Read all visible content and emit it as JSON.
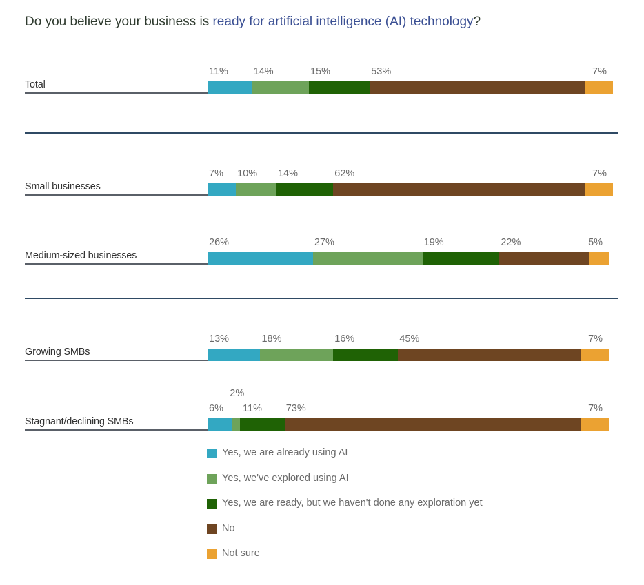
{
  "chart_data": {
    "type": "bar",
    "orientation": "horizontal",
    "stacked": true,
    "title": "Do you believe your business is ready for artificial intelligence (AI) technology?",
    "title_parts": {
      "plain": "Do you believe your business is ",
      "highlight": "ready for artificial intelligence (AI) technology",
      "end": "?"
    },
    "xlabel": "",
    "ylabel": "",
    "xlim": [
      0,
      100
    ],
    "unit": "%",
    "grid": false,
    "legend_position": "bottom",
    "categories": [
      "Total",
      "Small businesses",
      "Medium-sized businesses",
      "Growing SMBs",
      "Stagnant/declining SMBs"
    ],
    "groups": [
      [
        "Total"
      ],
      [
        "Small businesses",
        "Medium-sized businesses"
      ],
      [
        "Growing SMBs",
        "Stagnant/declining SMBs"
      ]
    ],
    "series": [
      {
        "name": "Yes, we are already using AI",
        "color": "#33a8c2",
        "values": [
          11,
          7,
          26,
          13,
          6
        ]
      },
      {
        "name": "Yes, we've explored using AI",
        "color": "#6ea35a",
        "values": [
          14,
          10,
          27,
          18,
          2
        ]
      },
      {
        "name": "Yes, we are ready, but we haven't done any exploration yet",
        "color": "#1f6205",
        "values": [
          15,
          14,
          19,
          16,
          11
        ]
      },
      {
        "name": "No",
        "color": "#6e4522",
        "values": [
          53,
          62,
          22,
          45,
          73
        ]
      },
      {
        "name": "Not sure",
        "color": "#eba232",
        "values": [
          7,
          7,
          5,
          7,
          7
        ]
      }
    ],
    "data_labels": [
      [
        "11%",
        "14%",
        "15%",
        "53%",
        "7%"
      ],
      [
        "7%",
        "10%",
        "14%",
        "62%",
        "7%"
      ],
      [
        "26%",
        "27%",
        "19%",
        "22%",
        "5%"
      ],
      [
        "13%",
        "18%",
        "16%",
        "45%",
        "7%"
      ],
      [
        "6%",
        "2%",
        "11%",
        "73%",
        "7%"
      ]
    ]
  }
}
